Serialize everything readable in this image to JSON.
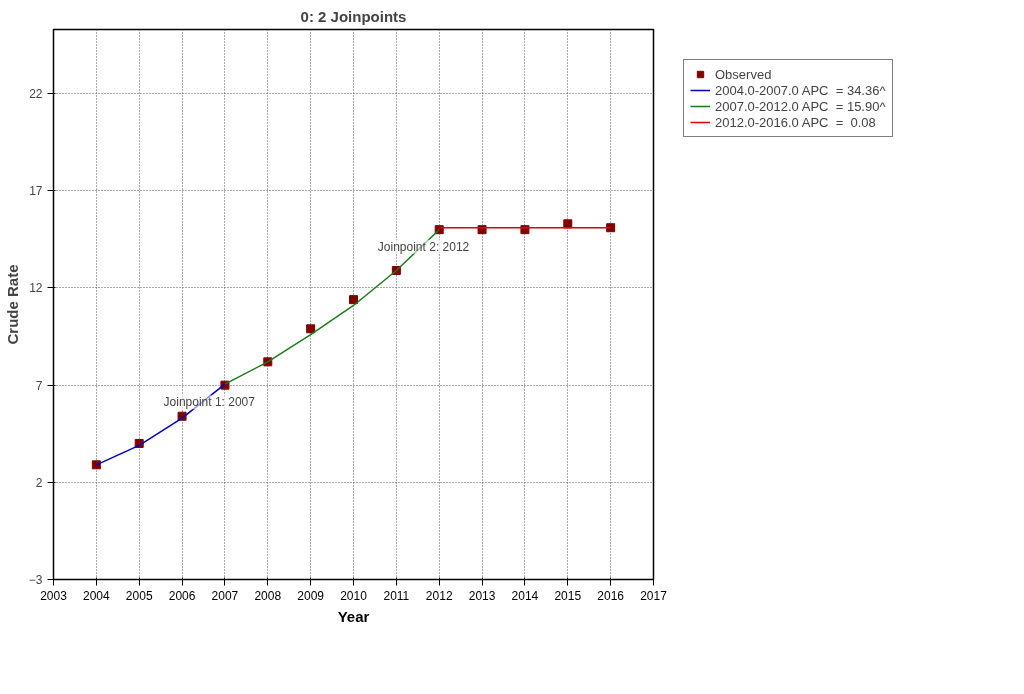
{
  "chart_data": {
    "type": "line",
    "title": "0: 2 Joinpoints",
    "xlabel": "Year",
    "ylabel": "Crude Rate",
    "xlim": [
      2003,
      2017
    ],
    "xticks": [
      2003,
      2004,
      2005,
      2006,
      2007,
      2008,
      2009,
      2010,
      2011,
      2012,
      2013,
      2014,
      2015,
      2016,
      2017
    ],
    "ylim": [
      -3,
      25.3
    ],
    "yticks": [
      -3,
      2,
      7,
      12,
      17,
      22
    ],
    "grid": true,
    "legend": "top right",
    "series": [
      {
        "name": "Observed",
        "type": "scatter",
        "marker": "square",
        "color": "#800000",
        "x": [
          2004,
          2005,
          2006,
          2007,
          2008,
          2009,
          2010,
          2011,
          2012,
          2013,
          2014,
          2015,
          2016
        ],
        "values": [
          2.9,
          4.0,
          5.4,
          7.0,
          8.2,
          9.9,
          11.4,
          12.9,
          15.0,
          15.0,
          15.0,
          15.3,
          15.1
        ]
      },
      {
        "name": "2004.0-2007.0 APC  = 34.36^",
        "color": "#0000c0",
        "x": [
          2004,
          2005,
          2006,
          2007
        ],
        "values": [
          2.9,
          3.9,
          5.3,
          7.05
        ]
      },
      {
        "name": "2007.0-2012.0 APC  = 15.90^",
        "color": "#1a7a1a",
        "x": [
          2007,
          2008,
          2009,
          2010,
          2011,
          2012
        ],
        "values": [
          7.05,
          8.2,
          9.6,
          11.1,
          12.9,
          15.0
        ]
      },
      {
        "name": "2012.0-2016.0 APC  =  0.08",
        "color": "#e00000",
        "x": [
          2012,
          2013,
          2014,
          2015,
          2016
        ],
        "values": [
          15.1,
          15.1,
          15.1,
          15.1,
          15.1
        ]
      }
    ],
    "annotations": [
      {
        "text": "Joinpoint 1:  2007",
        "x": 2007,
        "y": 7.0
      },
      {
        "text": "Joinpoint 2:  2012",
        "x": 2012,
        "y": 15.0
      }
    ]
  }
}
